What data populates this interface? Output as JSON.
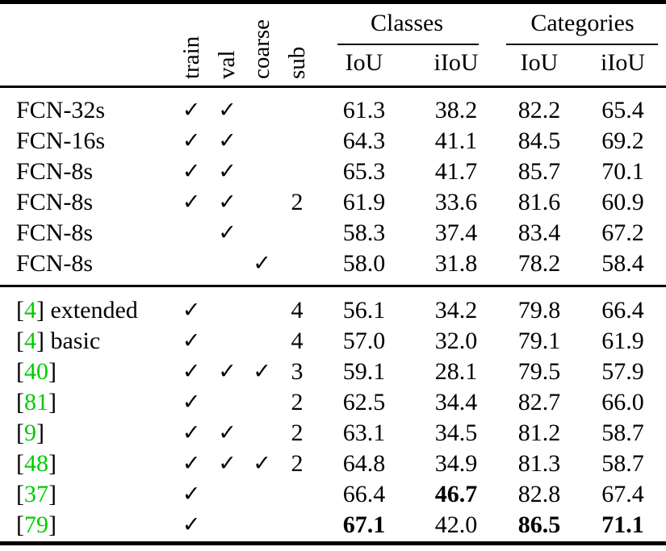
{
  "table": {
    "check_glyph": "✓",
    "citation_color": "#00cc00",
    "header": {
      "rotated": [
        "train",
        "val",
        "coarse",
        "sub"
      ],
      "groups": [
        {
          "label": "Classes",
          "cols": [
            "IoU",
            "iIoU"
          ]
        },
        {
          "label": "Categories",
          "cols": [
            "IoU",
            "iIoU"
          ]
        }
      ]
    },
    "sections": [
      {
        "rows": [
          {
            "name": "FCN-32s",
            "cite": "",
            "rest": "",
            "flags": [
              true,
              true,
              false
            ],
            "sub": "",
            "vals": [
              "61.3",
              "38.2",
              "82.2",
              "65.4"
            ],
            "bold": [
              false,
              false,
              false,
              false
            ]
          },
          {
            "name": "FCN-16s",
            "cite": "",
            "rest": "",
            "flags": [
              true,
              true,
              false
            ],
            "sub": "",
            "vals": [
              "64.3",
              "41.1",
              "84.5",
              "69.2"
            ],
            "bold": [
              false,
              false,
              false,
              false
            ]
          },
          {
            "name": "FCN-8s",
            "cite": "",
            "rest": "",
            "flags": [
              true,
              true,
              false
            ],
            "sub": "",
            "vals": [
              "65.3",
              "41.7",
              "85.7",
              "70.1"
            ],
            "bold": [
              false,
              false,
              false,
              false
            ]
          },
          {
            "name": "FCN-8s",
            "cite": "",
            "rest": "",
            "flags": [
              true,
              true,
              false
            ],
            "sub": "2",
            "vals": [
              "61.9",
              "33.6",
              "81.6",
              "60.9"
            ],
            "bold": [
              false,
              false,
              false,
              false
            ]
          },
          {
            "name": "FCN-8s",
            "cite": "",
            "rest": "",
            "flags": [
              false,
              true,
              false
            ],
            "sub": "",
            "vals": [
              "58.3",
              "37.4",
              "83.4",
              "67.2"
            ],
            "bold": [
              false,
              false,
              false,
              false
            ]
          },
          {
            "name": "FCN-8s",
            "cite": "",
            "rest": "",
            "flags": [
              false,
              false,
              true
            ],
            "sub": "",
            "vals": [
              "58.0",
              "31.8",
              "78.2",
              "58.4"
            ],
            "bold": [
              false,
              false,
              false,
              false
            ]
          }
        ]
      },
      {
        "rows": [
          {
            "name": "",
            "cite": "4",
            "rest": " extended",
            "flags": [
              true,
              false,
              false
            ],
            "sub": "4",
            "vals": [
              "56.1",
              "34.2",
              "79.8",
              "66.4"
            ],
            "bold": [
              false,
              false,
              false,
              false
            ]
          },
          {
            "name": "",
            "cite": "4",
            "rest": " basic",
            "flags": [
              true,
              false,
              false
            ],
            "sub": "4",
            "vals": [
              "57.0",
              "32.0",
              "79.1",
              "61.9"
            ],
            "bold": [
              false,
              false,
              false,
              false
            ]
          },
          {
            "name": "",
            "cite": "40",
            "rest": "",
            "flags": [
              true,
              true,
              true
            ],
            "sub": "3",
            "vals": [
              "59.1",
              "28.1",
              "79.5",
              "57.9"
            ],
            "bold": [
              false,
              false,
              false,
              false
            ]
          },
          {
            "name": "",
            "cite": "81",
            "rest": "",
            "flags": [
              true,
              false,
              false
            ],
            "sub": "2",
            "vals": [
              "62.5",
              "34.4",
              "82.7",
              "66.0"
            ],
            "bold": [
              false,
              false,
              false,
              false
            ]
          },
          {
            "name": "",
            "cite": "9",
            "rest": "",
            "flags": [
              true,
              true,
              false
            ],
            "sub": "2",
            "vals": [
              "63.1",
              "34.5",
              "81.2",
              "58.7"
            ],
            "bold": [
              false,
              false,
              false,
              false
            ]
          },
          {
            "name": "",
            "cite": "48",
            "rest": "",
            "flags": [
              true,
              true,
              true
            ],
            "sub": "2",
            "vals": [
              "64.8",
              "34.9",
              "81.3",
              "58.7"
            ],
            "bold": [
              false,
              false,
              false,
              false
            ]
          },
          {
            "name": "",
            "cite": "37",
            "rest": "",
            "flags": [
              true,
              false,
              false
            ],
            "sub": "",
            "vals": [
              "66.4",
              "46.7",
              "82.8",
              "67.4"
            ],
            "bold": [
              false,
              true,
              false,
              false
            ]
          },
          {
            "name": "",
            "cite": "79",
            "rest": "",
            "flags": [
              true,
              false,
              false
            ],
            "sub": "",
            "vals": [
              "67.1",
              "42.0",
              "86.5",
              "71.1"
            ],
            "bold": [
              true,
              false,
              true,
              true
            ]
          }
        ]
      }
    ]
  }
}
